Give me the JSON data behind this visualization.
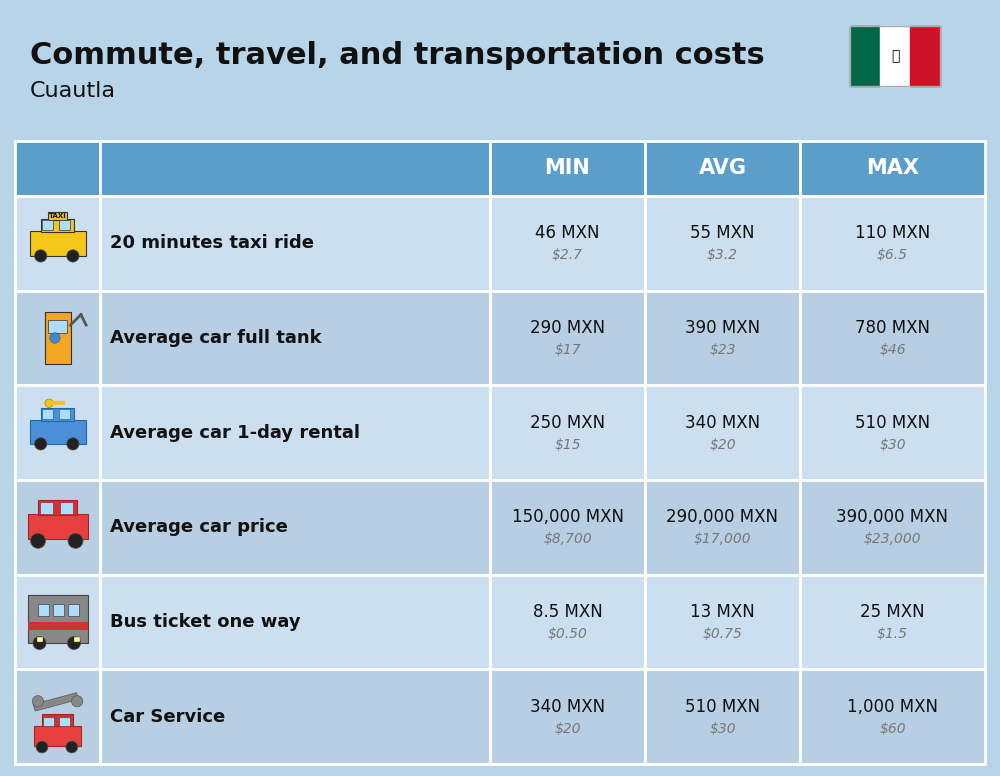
{
  "title": "Commute, travel, and transportation costs",
  "subtitle": "Cuautla",
  "bg_color": "#b8d4e8",
  "header_bg": "#5b9ec9",
  "header_text": "#ffffff",
  "row_colors": [
    "#ccdff0",
    "#b8cfe3"
  ],
  "border_color": "#ffffff",
  "col_headers": [
    "MIN",
    "AVG",
    "MAX"
  ],
  "rows": [
    {
      "label": "20 minutes taxi ride",
      "min_mxn": "46 MXN",
      "min_usd": "$2.7",
      "avg_mxn": "55 MXN",
      "avg_usd": "$3.2",
      "max_mxn": "110 MXN",
      "max_usd": "$6.5"
    },
    {
      "label": "Average car full tank",
      "min_mxn": "290 MXN",
      "min_usd": "$17",
      "avg_mxn": "390 MXN",
      "avg_usd": "$23",
      "max_mxn": "780 MXN",
      "max_usd": "$46"
    },
    {
      "label": "Average car 1-day rental",
      "min_mxn": "250 MXN",
      "min_usd": "$15",
      "avg_mxn": "340 MXN",
      "avg_usd": "$20",
      "max_mxn": "510 MXN",
      "max_usd": "$30"
    },
    {
      "label": "Average car price",
      "min_mxn": "150,000 MXN",
      "min_usd": "$8,700",
      "avg_mxn": "290,000 MXN",
      "avg_usd": "$17,000",
      "max_mxn": "390,000 MXN",
      "max_usd": "$23,000"
    },
    {
      "label": "Bus ticket one way",
      "min_mxn": "8.5 MXN",
      "min_usd": "$0.50",
      "avg_mxn": "13 MXN",
      "avg_usd": "$0.75",
      "max_mxn": "25 MXN",
      "max_usd": "$1.5"
    },
    {
      "label": "Car Service",
      "min_mxn": "340 MXN",
      "min_usd": "$20",
      "avg_mxn": "510 MXN",
      "avg_usd": "$30",
      "max_mxn": "1,000 MXN",
      "max_usd": "$60"
    }
  ],
  "flag": {
    "green": "#006847",
    "white": "#FFFFFF",
    "red": "#CE1126"
  },
  "icon_data": [
    {
      "type": "taxi",
      "color": "#f5c518",
      "text": "TAXI"
    },
    {
      "type": "pump",
      "color": "#f5a623",
      "text": ""
    },
    {
      "type": "rental",
      "color": "#4a90d9",
      "text": ""
    },
    {
      "type": "car",
      "color": "#e84040",
      "text": ""
    },
    {
      "type": "bus",
      "color": "#888888",
      "text": ""
    },
    {
      "type": "service",
      "color": "#888888",
      "text": ""
    }
  ]
}
